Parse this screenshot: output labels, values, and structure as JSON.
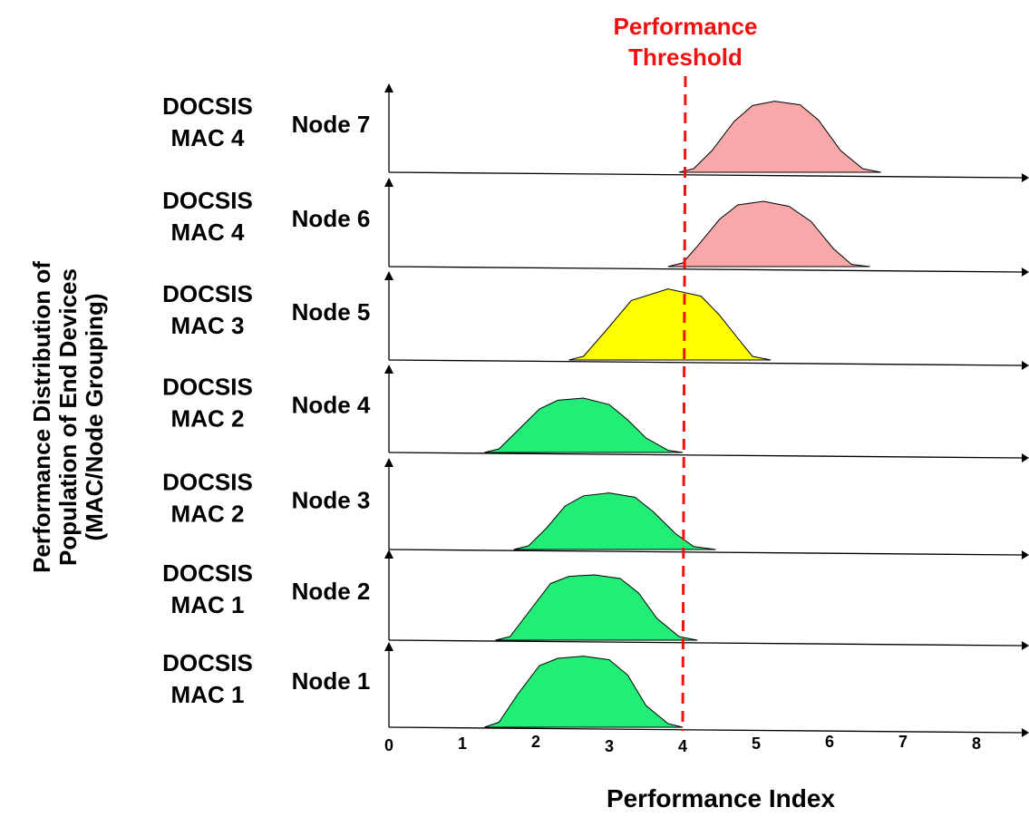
{
  "chart_data": {
    "type": "area",
    "title": "",
    "xlabel": "Performance Index",
    "ylabel_lines": [
      "Performance Distribution of",
      "Population of End Devices",
      "(MAC/Node Grouping)"
    ],
    "xlim": [
      0,
      8.7
    ],
    "x_ticks": [
      "0",
      "1",
      "2",
      "3",
      "4",
      "5",
      "6",
      "7",
      "8"
    ],
    "threshold": {
      "value": 4,
      "label_lines": [
        "Performance",
        "Threshold"
      ],
      "color": "#ee1111"
    },
    "colors": {
      "green": "#22ee77",
      "yellow": "#ffff00",
      "pink": "#f8a8a8"
    },
    "series": [
      {
        "name": "Node 7",
        "group_lines": [
          "DOCSIS",
          "MAC 4"
        ],
        "color": "#f8a8a8",
        "x": [
          3.95,
          4.15,
          4.4,
          4.7,
          4.95,
          5.25,
          5.6,
          5.85,
          6.15,
          6.45,
          6.7
        ],
        "y": [
          0,
          0.05,
          0.3,
          0.7,
          0.92,
          0.98,
          0.93,
          0.72,
          0.3,
          0.05,
          0
        ]
      },
      {
        "name": "Node 6",
        "group_lines": [
          "DOCSIS",
          "MAC 4"
        ],
        "color": "#f8a8a8",
        "x": [
          3.8,
          4.0,
          4.2,
          4.5,
          4.75,
          5.1,
          5.45,
          5.75,
          6.05,
          6.3,
          6.55
        ],
        "y": [
          0,
          0.05,
          0.28,
          0.65,
          0.85,
          0.9,
          0.83,
          0.62,
          0.25,
          0.03,
          0
        ]
      },
      {
        "name": "Node 5",
        "group_lines": [
          "DOCSIS",
          "MAC 3"
        ],
        "color": "#ffff00",
        "x": [
          2.45,
          2.65,
          2.95,
          3.3,
          3.8,
          4.25,
          4.5,
          4.75,
          4.95,
          5.2
        ],
        "y": [
          0,
          0.05,
          0.4,
          0.82,
          0.98,
          0.88,
          0.62,
          0.3,
          0.05,
          0
        ]
      },
      {
        "name": "Node 4",
        "group_lines": [
          "DOCSIS",
          "MAC 2"
        ],
        "color": "#22ee77",
        "x": [
          1.3,
          1.5,
          1.75,
          2.05,
          2.3,
          2.65,
          3.0,
          3.25,
          3.5,
          3.8,
          4.0
        ],
        "y": [
          0,
          0.05,
          0.3,
          0.6,
          0.72,
          0.75,
          0.66,
          0.45,
          0.2,
          0.03,
          0
        ]
      },
      {
        "name": "Node 3",
        "group_lines": [
          "DOCSIS",
          "MAC 2"
        ],
        "color": "#22ee77",
        "x": [
          1.7,
          1.9,
          2.15,
          2.4,
          2.65,
          3.0,
          3.35,
          3.6,
          3.9,
          4.15,
          4.45
        ],
        "y": [
          0,
          0.05,
          0.3,
          0.6,
          0.74,
          0.78,
          0.72,
          0.52,
          0.22,
          0.04,
          0
        ]
      },
      {
        "name": "Node 2",
        "group_lines": [
          "DOCSIS",
          "MAC 1"
        ],
        "color": "#22ee77",
        "x": [
          1.45,
          1.65,
          1.95,
          2.2,
          2.45,
          2.8,
          3.15,
          3.4,
          3.65,
          3.95,
          4.2
        ],
        "y": [
          0,
          0.05,
          0.45,
          0.78,
          0.88,
          0.9,
          0.85,
          0.65,
          0.3,
          0.05,
          0
        ]
      },
      {
        "name": "Node 1",
        "group_lines": [
          "DOCSIS",
          "MAC 1"
        ],
        "color": "#22ee77",
        "x": [
          1.3,
          1.5,
          1.75,
          2.05,
          2.3,
          2.65,
          3.0,
          3.25,
          3.5,
          3.8,
          4.0
        ],
        "y": [
          0,
          0.07,
          0.45,
          0.85,
          0.95,
          0.98,
          0.93,
          0.72,
          0.3,
          0.05,
          0
        ]
      }
    ]
  }
}
